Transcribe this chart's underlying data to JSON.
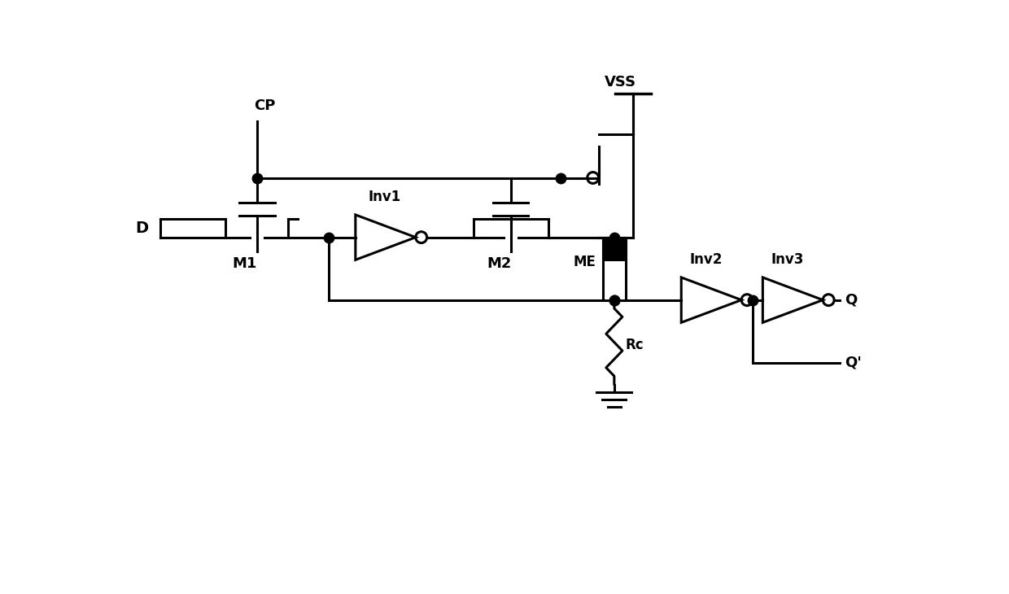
{
  "bg_color": "#ffffff",
  "line_color": "#000000",
  "line_width": 2.2,
  "dot_size": 9,
  "figsize": [
    12.4,
    7.3
  ],
  "xlim": [
    0,
    12.4
  ],
  "ylim": [
    0,
    7.3
  ]
}
